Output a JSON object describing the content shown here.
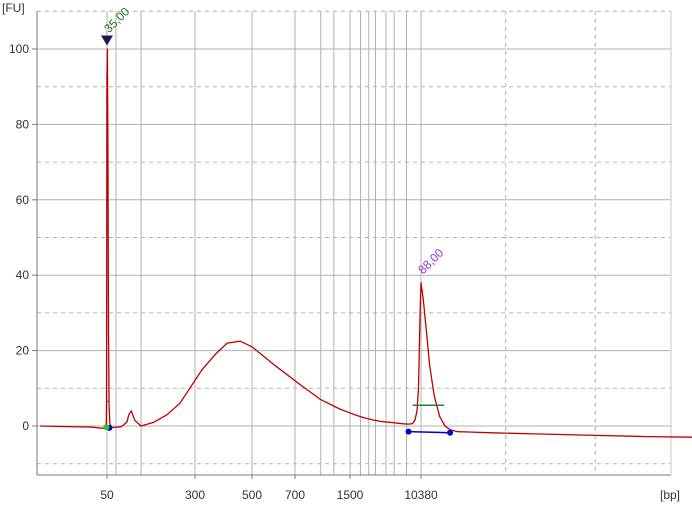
{
  "chart_data": {
    "type": "line",
    "title": "",
    "ylabel": "[FU]",
    "xlabel": "[bp]",
    "x_scale": "log",
    "ylim": [
      -13,
      110
    ],
    "grid": true,
    "legend": "none",
    "y_ticks": [
      0,
      20,
      40,
      60,
      80,
      100
    ],
    "x_ticks": [
      {
        "value": 50,
        "label": "50"
      },
      {
        "value": 300,
        "label": "300"
      },
      {
        "value": 500,
        "label": "500"
      },
      {
        "value": 700,
        "label": "700"
      },
      {
        "value": 1500,
        "label": "1500"
      },
      {
        "value": 10380,
        "label": "10380"
      }
    ],
    "x_gridlines": [
      50,
      60,
      100,
      300,
      500,
      700,
      1000,
      1200,
      1500,
      2000,
      2500,
      3000,
      4000,
      5000,
      7000,
      10380
    ],
    "colors": {
      "trace": "#c00000",
      "baseline": "#0000cc",
      "grid": "#b0b0b0",
      "axis": "#7a7a7a",
      "lower_marker_label": "#1a7a1a",
      "upper_marker_label": "#9b30d0",
      "marker_triangle": "#1a1a5a",
      "green_dot": "#22cc22",
      "blue_dot": "#0000cc",
      "peak_width": "#2a7a4a"
    },
    "annotations": [
      {
        "label": "35,00",
        "x": 50,
        "y": 102,
        "color": "#1a7a1a"
      },
      {
        "label": "88,00",
        "x": 10380,
        "y": 38,
        "color": "#9b30d0"
      }
    ],
    "series": [
      {
        "x": [
          1,
          20,
          40,
          46,
          48,
          48.6,
          49.2,
          49.8,
          50.4,
          51,
          51.6,
          52.2,
          53,
          55,
          58,
          62,
          66,
          70,
          72,
          75,
          78,
          82,
          88,
          100,
          130,
          170,
          220,
          270,
          320,
          360,
          400,
          450,
          500,
          600,
          750,
          1000,
          1300,
          1700,
          2200,
          2800,
          3500,
          4300,
          5200,
          6200,
          7300,
          8200,
          8800,
          9300,
          9700,
          10000,
          10200,
          10380,
          10550,
          10800,
          11100,
          11500,
          12000,
          12500,
          13000,
          13800,
          15000,
          18000,
          25000,
          40000,
          60000,
          90000
        ],
        "y": [
          0,
          -0.3,
          -0.6,
          -0.4,
          1,
          6,
          40,
          92,
          100,
          70,
          25,
          5,
          0.5,
          -0.3,
          -0.4,
          -0.3,
          -0.2,
          0.2,
          0.6,
          1,
          3,
          4,
          1.5,
          0,
          1,
          3,
          6,
          10,
          15,
          19,
          22,
          22.5,
          21,
          16,
          11,
          7,
          4.5,
          3,
          2.2,
          1.6,
          1.2,
          1.0,
          0.8,
          0.6,
          0.5,
          0.6,
          1.5,
          4,
          10,
          24,
          33,
          38,
          34,
          26,
          16,
          8,
          2.5,
          0,
          -1,
          -1.5,
          -1.6,
          -1.8,
          -2.1,
          -2.5,
          -2.8,
          -3.0
        ]
      }
    ],
    "baseline_points": [
      {
        "x": 52.5,
        "y": -0.5
      },
      {
        "x": 7400,
        "y": -1.5
      },
      {
        "x": 13000,
        "y": -1.8
      }
    ],
    "green_point": {
      "x": 48.2,
      "y": -0.3
    },
    "peak_widths": [
      {
        "x1": 49,
        "x2": 52.4,
        "y": 6.5
      },
      {
        "x1": 8300,
        "x2": 12400,
        "y": 5.5
      }
    ]
  }
}
